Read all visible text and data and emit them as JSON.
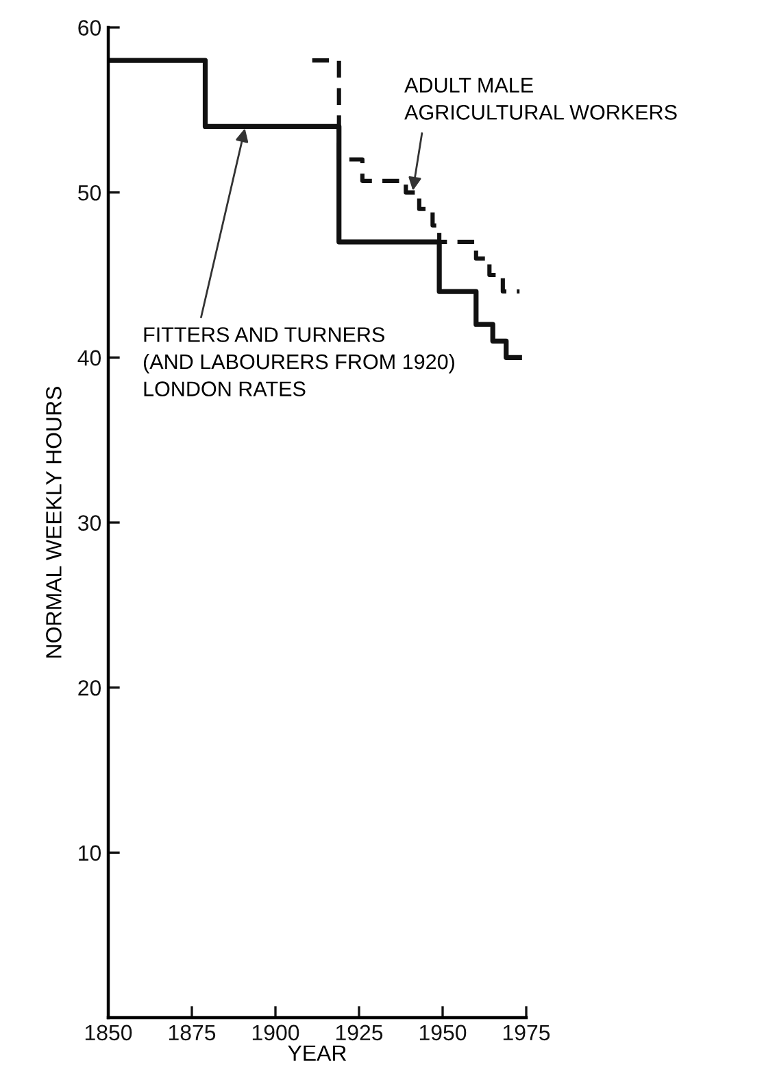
{
  "chart_data": {
    "type": "step",
    "xlabel": "YEAR",
    "ylabel": "NORMAL WEEKLY HOURS",
    "xlim": [
      1850,
      1975
    ],
    "xticks": [
      1850,
      1875,
      1900,
      1925,
      1950,
      1975
    ],
    "ylim": [
      0,
      60
    ],
    "yticks": [
      10,
      20,
      30,
      40,
      50,
      60
    ],
    "grid": false,
    "legend": false,
    "series": [
      {
        "color": "#111111",
        "line_style": "solid",
        "x": [
          1850,
          1879,
          1919,
          1949,
          1960,
          1965,
          1969,
          1973
        ],
        "values": [
          58,
          54,
          47,
          44,
          42,
          41,
          40,
          40
        ]
      },
      {
        "color": "#111111",
        "line_style": "dashed",
        "x": [
          1911,
          1919,
          1926,
          1939,
          1943,
          1947,
          1949,
          1960,
          1964,
          1968,
          1973
        ],
        "values": [
          58,
          52,
          50.7,
          50,
          49,
          48,
          47,
          46,
          45,
          44,
          44
        ]
      }
    ],
    "annotations": [
      {
        "text": "FITTERS AND TURNERS\n(AND LABOURERS FROM 1920)\nLONDON RATES",
        "x": 1891,
        "y": 54
      },
      {
        "text": "ADULT MALE\nAGRICULTURAL WORKERS",
        "x": 1941,
        "y": 50
      }
    ]
  }
}
